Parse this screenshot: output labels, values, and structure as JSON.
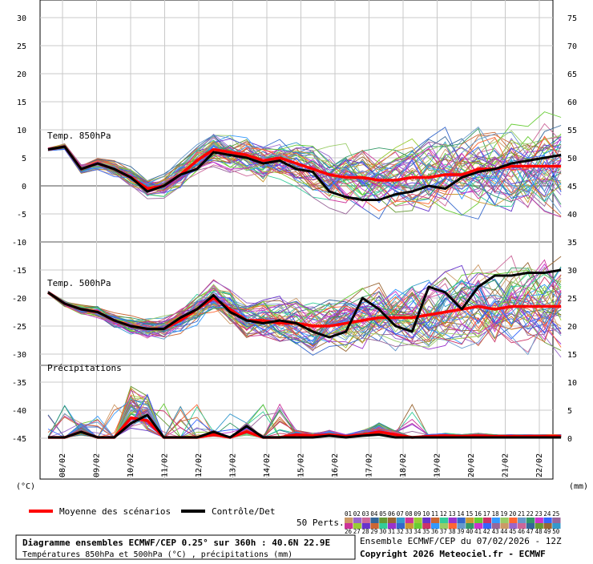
{
  "chart_data": {
    "type": "line",
    "left_axis": {
      "unit_label": "(°C)",
      "ticks": [
        30,
        25,
        20,
        15,
        10,
        5,
        0,
        -5,
        -10,
        -15,
        -20,
        -25,
        -30,
        -35,
        -40,
        -45
      ]
    },
    "right_axis": {
      "unit_label": "(mm)",
      "ticks": [
        75,
        70,
        65,
        60,
        55,
        50,
        45,
        40,
        35,
        30,
        25,
        20,
        15,
        10,
        5,
        0
      ]
    },
    "x_ticks": [
      "08/02",
      "09/02",
      "10/02",
      "11/02",
      "12/02",
      "13/02",
      "14/02",
      "15/02",
      "16/02",
      "17/02",
      "18/02",
      "19/02",
      "20/02",
      "21/02",
      "22/02"
    ],
    "panel_labels": {
      "t850": "Temp. 850hPa",
      "t500": "Temp. 500hPa",
      "precip": "Précipitations"
    },
    "legend": {
      "mean": "Moyenne des scénarios",
      "control": "Contrôle/Det",
      "perts_label": "50 Perts.",
      "mean_color": "#ff0000",
      "control_color": "#000000"
    },
    "pert_numbers_top": [
      "01",
      "02",
      "03",
      "04",
      "05",
      "06",
      "07",
      "08",
      "09",
      "10",
      "11",
      "12",
      "13",
      "14",
      "15",
      "16",
      "17",
      "18",
      "19",
      "20",
      "21",
      "22",
      "23",
      "24",
      "25"
    ],
    "pert_numbers_bottom": [
      "26",
      "27",
      "28",
      "29",
      "30",
      "31",
      "32",
      "33",
      "34",
      "35",
      "36",
      "37",
      "38",
      "39",
      "40",
      "41",
      "42",
      "43",
      "44",
      "45",
      "46",
      "47",
      "48",
      "49",
      "50"
    ],
    "pert_colors": [
      "#cc9966",
      "#9966cc",
      "#cc6699",
      "#336699",
      "#669933",
      "#996633",
      "#3399cc",
      "#cc3399",
      "#99cc33",
      "#6633cc",
      "#cc6633",
      "#33cc99",
      "#9933cc",
      "#3366cc",
      "#cc9933",
      "#66cc33",
      "#cc3366",
      "#3399ff",
      "#99cc66",
      "#ff6633",
      "#6699cc",
      "#339966",
      "#cc33cc",
      "#3366ff",
      "#996699"
    ],
    "series_units": {
      "t850": "°C",
      "t500": "°C",
      "precip": "mm"
    },
    "series": [
      {
        "name": "Moyenne des scénarios",
        "panel": "t850",
        "x": [
          0,
          0.5,
          1,
          1.5,
          2,
          2.5,
          3,
          3.5,
          4,
          4.5,
          5,
          5.5,
          6,
          6.5,
          7,
          7.5,
          8,
          8.5,
          9,
          9.5,
          10,
          10.5,
          11,
          11.5,
          12,
          12.5,
          13,
          13.5,
          14,
          14.5,
          15,
          15.5
        ],
        "values": [
          6.5,
          7,
          3,
          4,
          3,
          1.5,
          -0.5,
          0,
          2,
          4.5,
          6.5,
          6,
          5.5,
          4.5,
          5,
          4,
          3,
          2,
          1.5,
          1.5,
          1,
          1,
          1.5,
          1.5,
          2,
          2,
          3,
          3,
          3.5,
          3.5,
          3.5,
          3.5
        ]
      },
      {
        "name": "Contrôle/Det",
        "panel": "t850",
        "x": [
          0,
          0.5,
          1,
          1.5,
          2,
          2.5,
          3,
          3.5,
          4,
          4.5,
          5,
          5.5,
          6,
          6.5,
          7,
          7.5,
          8,
          8.5,
          9,
          9.5,
          10,
          10.5,
          11,
          11.5,
          12,
          12.5,
          13,
          13.5,
          14,
          14.5,
          15,
          15.5
        ],
        "values": [
          6.5,
          7,
          3,
          4,
          3,
          1.5,
          -1,
          0,
          2,
          3,
          6,
          5.5,
          5,
          4,
          4.5,
          3,
          2.5,
          -1,
          -2,
          -2.5,
          -2.5,
          -1.5,
          -1,
          0,
          -0.5,
          1.5,
          2.5,
          3,
          4,
          4.5,
          5,
          5.5
        ]
      },
      {
        "name": "Moyenne des scénarios",
        "panel": "t500",
        "x": [
          0,
          0.5,
          1,
          1.5,
          2,
          2.5,
          3,
          3.5,
          4,
          4.5,
          5,
          5.5,
          6,
          6.5,
          7,
          7.5,
          8,
          8.5,
          9,
          9.5,
          10,
          10.5,
          11,
          11.5,
          12,
          12.5,
          13,
          13.5,
          14,
          14.5,
          15,
          15.5
        ],
        "values": [
          -19,
          -21,
          -22,
          -22.5,
          -24,
          -25,
          -25.5,
          -25.5,
          -24,
          -22,
          -20,
          -22,
          -24,
          -24,
          -24.5,
          -24.5,
          -25,
          -25,
          -24.5,
          -24,
          -23.5,
          -23.5,
          -23.5,
          -23,
          -22.5,
          -22,
          -21.5,
          -22,
          -21.5,
          -21.5,
          -21.5,
          -21.5
        ]
      },
      {
        "name": "Contrôle/Det",
        "panel": "t500",
        "x": [
          0,
          0.5,
          1,
          1.5,
          2,
          2.5,
          3,
          3.5,
          4,
          4.5,
          5,
          5.5,
          6,
          6.5,
          7,
          7.5,
          8,
          8.5,
          9,
          9.5,
          10,
          10.5,
          11,
          11.5,
          12,
          12.5,
          13,
          13.5,
          14,
          14.5,
          15,
          15.5
        ],
        "values": [
          -19,
          -21,
          -22,
          -22.5,
          -24,
          -25,
          -25.5,
          -25.5,
          -23.5,
          -22,
          -19.5,
          -22.5,
          -24,
          -24.5,
          -24,
          -24.5,
          -26,
          -27,
          -26,
          -20,
          -22,
          -25,
          -26,
          -18,
          -19,
          -22,
          -18,
          -16,
          -16,
          -15.5,
          -15.5,
          -15
        ]
      },
      {
        "name": "Moyenne des scénarios",
        "panel": "precip",
        "x": [
          0,
          0.5,
          1,
          1.5,
          2,
          2.5,
          3,
          3.5,
          4,
          4.5,
          5,
          5.5,
          6,
          6.5,
          7,
          7.5,
          8,
          8.5,
          9,
          9.5,
          10,
          10.5,
          11,
          11.5,
          12,
          12.5,
          13,
          13.5,
          14,
          14.5,
          15,
          15.5
        ],
        "values": [
          0,
          0,
          1,
          0,
          0,
          3.5,
          3,
          0,
          0,
          0,
          0.5,
          0,
          1,
          0,
          0,
          0.5,
          0.3,
          0.5,
          0.2,
          0.5,
          1,
          0.5,
          0,
          0.2,
          0.3,
          0.2,
          0.3,
          0.2,
          0.2,
          0.2,
          0.2,
          0.2
        ]
      },
      {
        "name": "Contrôle/Det",
        "panel": "precip",
        "x": [
          0,
          0.5,
          1,
          1.5,
          2,
          2.5,
          3,
          3.5,
          4,
          4.5,
          5,
          5.5,
          6,
          6.5,
          7,
          7.5,
          8,
          8.5,
          9,
          9.5,
          10,
          10.5,
          11,
          11.5,
          12,
          12.5,
          13,
          13.5,
          14,
          14.5,
          15,
          15.5
        ],
        "values": [
          0,
          0,
          1,
          0,
          0,
          2.5,
          4,
          0,
          0,
          0,
          1,
          0,
          2,
          0,
          0,
          0,
          0,
          0.3,
          0,
          0.3,
          0.5,
          0,
          0,
          0,
          0,
          0,
          0,
          0,
          0,
          0,
          0,
          0
        ]
      }
    ]
  },
  "footer": {
    "title_line1": "Diagramme ensembles ECMWF/CEP 0.25° sur 360h : 40.6N 22.9E",
    "title_line2": "Températures 850hPa et 500hPa (°C) , précipitations (mm)",
    "run_line": "Ensemble ECMWF/CEP du 07/02/2026 - 12Z",
    "copyright": "Copyright 2026 Meteociel.fr - ECMWF"
  }
}
